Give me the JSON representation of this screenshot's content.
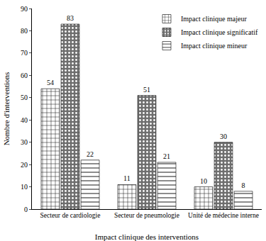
{
  "chart_data": {
    "type": "bar",
    "x_label": "Impact clinique des interventions",
    "y_label": "Nombre d'interventions",
    "categories": [
      "Secteur de cardiologie",
      "Secteur de pneumologie",
      "Unité de médecine interne"
    ],
    "series": [
      {
        "name": "Impact clinique majeur",
        "color": "#ffffff",
        "marker": "grid",
        "values": [
          54,
          11,
          10
        ]
      },
      {
        "name": "Impact clinique significatif",
        "color": "#6e6e6e",
        "marker": "dots",
        "values": [
          83,
          51,
          30
        ]
      },
      {
        "name": "Impact clinique mineur",
        "color": "#ffffff",
        "marker": "hlines",
        "values": [
          22,
          21,
          8
        ]
      }
    ],
    "ylim": [
      0,
      90
    ],
    "yticks": [
      0,
      10,
      20,
      30,
      40,
      50,
      60,
      70,
      80,
      90
    ],
    "grid": false,
    "legend": "top right",
    "data_labels": true
  }
}
